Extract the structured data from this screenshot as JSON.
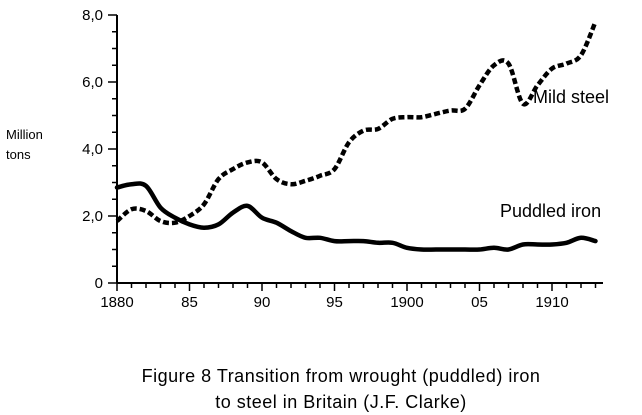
{
  "chart_data": {
    "type": "line",
    "ylabel": "Million tons",
    "ylabel_lines": [
      "Million",
      "tons"
    ],
    "ylim": [
      0,
      8
    ],
    "xlim": [
      1880,
      1913
    ],
    "x_ticks": [
      {
        "value": 1880,
        "label": "1880"
      },
      {
        "value": 1885,
        "label": "85"
      },
      {
        "value": 1890,
        "label": "90"
      },
      {
        "value": 1895,
        "label": "95"
      },
      {
        "value": 1900,
        "label": "1900"
      },
      {
        "value": 1905,
        "label": "05"
      },
      {
        "value": 1910,
        "label": "1910"
      }
    ],
    "y_ticks": [
      {
        "value": 0,
        "label": "0"
      },
      {
        "value": 2,
        "label": "2,0"
      },
      {
        "value": 4,
        "label": "4,0"
      },
      {
        "value": 6,
        "label": "6,0"
      },
      {
        "value": 8,
        "label": "8,0"
      }
    ],
    "grid": false,
    "series": [
      {
        "name": "Mild steel",
        "style": "dashed",
        "x": [
          1880,
          1881,
          1882,
          1883,
          1884,
          1885,
          1886,
          1887,
          1888,
          1889,
          1890,
          1891,
          1892,
          1893,
          1894,
          1895,
          1896,
          1897,
          1898,
          1899,
          1900,
          1901,
          1902,
          1903,
          1904,
          1905,
          1906,
          1907,
          1908,
          1909,
          1910,
          1911,
          1912,
          1913
        ],
        "y": [
          1.85,
          2.2,
          2.15,
          1.85,
          1.8,
          2.0,
          2.35,
          3.1,
          3.4,
          3.6,
          3.6,
          3.1,
          2.95,
          3.05,
          3.2,
          3.4,
          4.2,
          4.55,
          4.6,
          4.9,
          4.95,
          4.95,
          5.05,
          5.15,
          5.2,
          5.9,
          6.5,
          6.55,
          5.35,
          5.9,
          6.4,
          6.55,
          6.8,
          7.8
        ]
      },
      {
        "name": "Puddled iron",
        "style": "solid",
        "x": [
          1880,
          1881,
          1882,
          1883,
          1884,
          1885,
          1886,
          1887,
          1888,
          1889,
          1890,
          1891,
          1892,
          1893,
          1894,
          1895,
          1896,
          1897,
          1898,
          1899,
          1900,
          1901,
          1902,
          1903,
          1904,
          1905,
          1906,
          1907,
          1908,
          1909,
          1910,
          1911,
          1912,
          1913
        ],
        "y": [
          2.85,
          2.95,
          2.9,
          2.25,
          1.95,
          1.75,
          1.65,
          1.75,
          2.1,
          2.3,
          1.95,
          1.8,
          1.55,
          1.35,
          1.35,
          1.25,
          1.25,
          1.25,
          1.2,
          1.2,
          1.05,
          1.0,
          1.0,
          1.0,
          1.0,
          1.0,
          1.05,
          1.0,
          1.15,
          1.15,
          1.15,
          1.2,
          1.35,
          1.25
        ]
      }
    ]
  },
  "caption": {
    "line1": "Figure 8  Transition from wrought (puddled) iron",
    "line2": "to steel in Britain (J.F. Clarke)"
  }
}
